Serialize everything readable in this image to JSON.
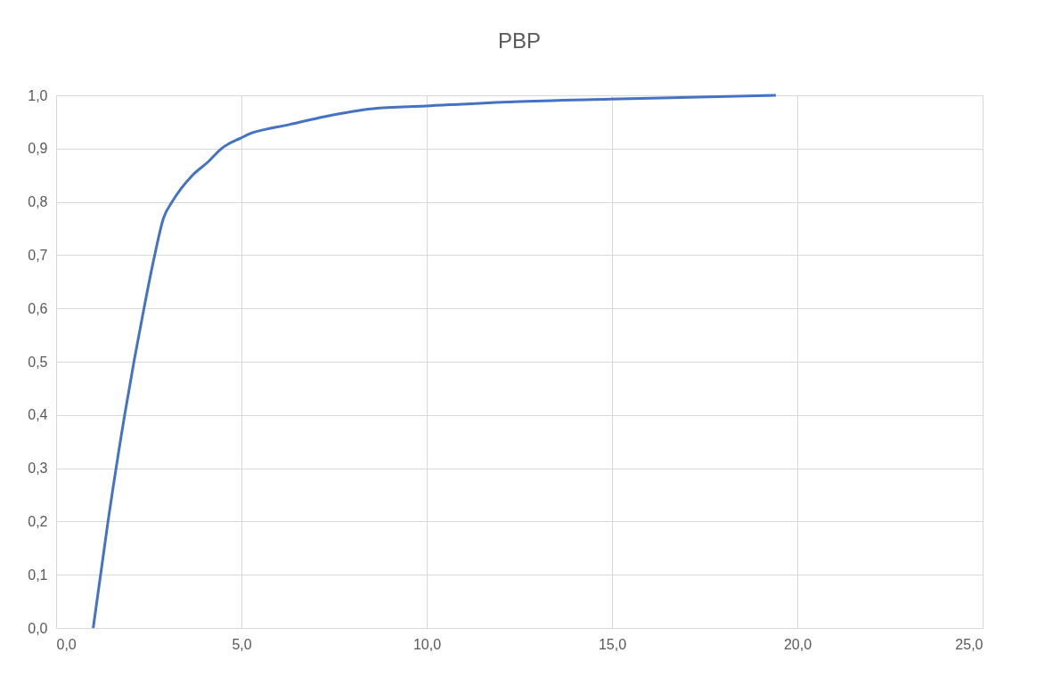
{
  "chart_data": {
    "type": "line",
    "title": "PBP",
    "x": [
      1.0,
      1.4,
      1.85,
      2.1,
      2.37,
      2.66,
      2.9,
      3.13,
      3.68,
      4.1,
      4.46,
      4.99,
      5.3,
      5.58,
      6.29,
      7.24,
      8.55,
      9.97,
      12.35,
      14.96,
      19.42
    ],
    "series": [
      {
        "color": "#4472c4",
        "values": [
          0.0,
          0.2,
          0.4,
          0.5,
          0.6,
          0.7,
          0.77,
          0.8,
          0.85,
          0.875,
          0.9,
          0.92,
          0.93,
          0.935,
          0.945,
          0.96,
          0.975,
          0.98,
          0.988,
          0.993,
          1.0
        ]
      }
    ],
    "xlim": [
      0,
      25
    ],
    "xticks": [
      {
        "value": 0,
        "label": "0,0"
      },
      {
        "value": 5,
        "label": "5,0"
      },
      {
        "value": 10,
        "label": "10,0"
      },
      {
        "value": 15,
        "label": "15,0"
      },
      {
        "value": 20,
        "label": "20,0"
      },
      {
        "value": 25,
        "label": "25,0"
      }
    ],
    "ylim": [
      0,
      1
    ],
    "yticks": [
      {
        "value": 0,
        "label": "0,0"
      },
      {
        "value": 0.1,
        "label": "0,1"
      },
      {
        "value": 0.2,
        "label": "0,2"
      },
      {
        "value": 0.3,
        "label": "0,3"
      },
      {
        "value": 0.4,
        "label": "0,4"
      },
      {
        "value": 0.5,
        "label": "0,5"
      },
      {
        "value": 0.6,
        "label": "0,6"
      },
      {
        "value": 0.7,
        "label": "0,7"
      },
      {
        "value": 0.8,
        "label": "0,8"
      },
      {
        "value": 0.9,
        "label": "0,9"
      },
      {
        "value": 1.0,
        "label": "1,0"
      }
    ],
    "grid": true,
    "marker": "none",
    "line_style": "solid"
  }
}
